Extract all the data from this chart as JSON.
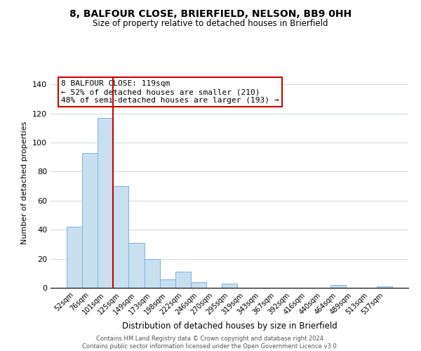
{
  "title": "8, BALFOUR CLOSE, BRIERFIELD, NELSON, BB9 0HH",
  "subtitle": "Size of property relative to detached houses in Brierfield",
  "xlabel": "Distribution of detached houses by size in Brierfield",
  "ylabel": "Number of detached properties",
  "bar_labels": [
    "52sqm",
    "76sqm",
    "101sqm",
    "125sqm",
    "149sqm",
    "173sqm",
    "198sqm",
    "222sqm",
    "246sqm",
    "270sqm",
    "295sqm",
    "319sqm",
    "343sqm",
    "367sqm",
    "392sqm",
    "416sqm",
    "440sqm",
    "464sqm",
    "489sqm",
    "513sqm",
    "537sqm"
  ],
  "bar_values": [
    42,
    93,
    117,
    70,
    31,
    20,
    6,
    11,
    4,
    0,
    3,
    0,
    0,
    0,
    0,
    0,
    0,
    2,
    0,
    0,
    1
  ],
  "bar_color": "#c8dff0",
  "bar_edge_color": "#7bb4d4",
  "vline_color": "#cc0000",
  "ylim": [
    0,
    145
  ],
  "yticks": [
    0,
    20,
    40,
    60,
    80,
    100,
    120,
    140
  ],
  "annotation_line1": "8 BALFOUR CLOSE: 119sqm",
  "annotation_line2": "← 52% of detached houses are smaller (210)",
  "annotation_line3": "48% of semi-detached houses are larger (193) →",
  "footer_line1": "Contains HM Land Registry data © Crown copyright and database right 2024.",
  "footer_line2": "Contains public sector information licensed under the Open Government Licence v3.0.",
  "background_color": "#ffffff",
  "grid_color": "#d0dde8"
}
